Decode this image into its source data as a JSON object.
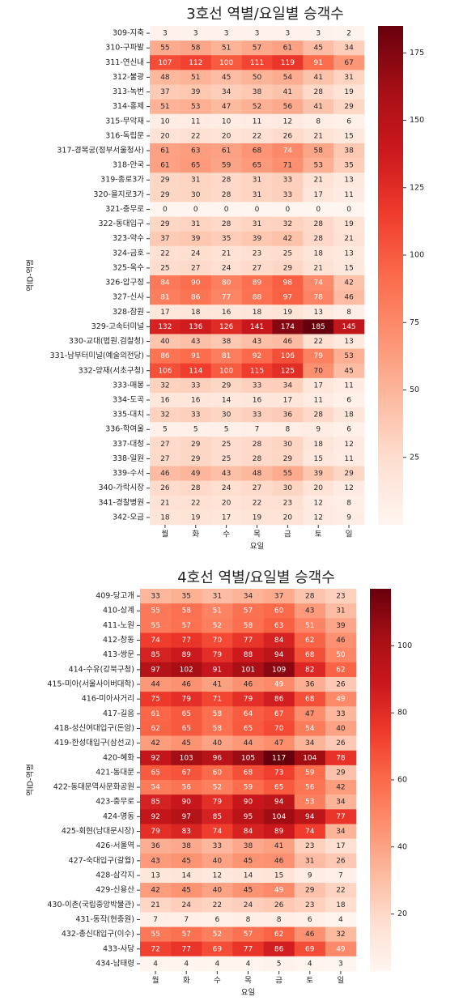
{
  "chart_data": [
    {
      "type": "heatmap",
      "title": "3호선 역별/요일별 승객수",
      "x_label": "요일",
      "y_label": "역ID-역명",
      "cmap": "Reds",
      "x_categories": [
        "월",
        "화",
        "수",
        "목",
        "금",
        "토",
        "일"
      ],
      "y_categories": [
        "309-지축",
        "310-구파발",
        "311-연신내",
        "312-불광",
        "313-녹번",
        "314-홍제",
        "315-무악재",
        "316-독립문",
        "317-경복궁(정부서울청사)",
        "318-안국",
        "319-종로3가",
        "320-을지로3가",
        "321-충무로",
        "322-동대입구",
        "323-약수",
        "324-금호",
        "325-옥수",
        "326-압구정",
        "327-신사",
        "328-잠원",
        "329-고속터미널",
        "330-교대(법원.검찰청)",
        "331-남부터미널(예술의전당)",
        "332-양재(서초구청)",
        "333-매봉",
        "334-도곡",
        "335-대치",
        "336-학여울",
        "337-대청",
        "338-일원",
        "339-수서",
        "340-가락시장",
        "341-경찰병원",
        "342-오금"
      ],
      "values": [
        [
          3,
          3,
          3,
          3,
          3,
          3,
          2
        ],
        [
          55,
          58,
          51,
          57,
          61,
          45,
          34
        ],
        [
          107,
          112,
          100,
          111,
          119,
          91,
          67
        ],
        [
          48,
          51,
          45,
          50,
          54,
          41,
          31
        ],
        [
          37,
          39,
          34,
          38,
          41,
          28,
          19
        ],
        [
          51,
          53,
          47,
          52,
          56,
          41,
          29
        ],
        [
          10,
          11,
          10,
          11,
          12,
          8,
          6
        ],
        [
          20,
          22,
          20,
          22,
          26,
          21,
          15
        ],
        [
          61,
          63,
          61,
          68,
          74,
          58,
          38
        ],
        [
          61,
          65,
          59,
          65,
          71,
          53,
          35
        ],
        [
          29,
          31,
          28,
          31,
          33,
          21,
          13
        ],
        [
          29,
          30,
          28,
          31,
          33,
          17,
          11
        ],
        [
          0,
          0,
          0,
          0,
          0,
          0,
          0
        ],
        [
          29,
          31,
          28,
          31,
          32,
          28,
          19
        ],
        [
          37,
          39,
          35,
          39,
          42,
          28,
          21
        ],
        [
          22,
          24,
          21,
          23,
          25,
          18,
          13
        ],
        [
          25,
          27,
          24,
          27,
          29,
          21,
          15
        ],
        [
          84,
          90,
          80,
          89,
          98,
          74,
          42
        ],
        [
          81,
          86,
          77,
          88,
          97,
          78,
          46
        ],
        [
          17,
          18,
          16,
          18,
          19,
          13,
          8
        ],
        [
          132,
          136,
          126,
          141,
          174,
          185,
          145
        ],
        [
          40,
          43,
          38,
          43,
          46,
          22,
          13
        ],
        [
          86,
          91,
          81,
          92,
          106,
          79,
          53
        ],
        [
          106,
          114,
          100,
          115,
          125,
          70,
          45
        ],
        [
          32,
          33,
          29,
          33,
          34,
          17,
          11
        ],
        [
          16,
          16,
          14,
          16,
          17,
          11,
          6
        ],
        [
          32,
          33,
          30,
          33,
          36,
          28,
          18
        ],
        [
          5,
          5,
          5,
          7,
          8,
          9,
          6
        ],
        [
          27,
          29,
          25,
          28,
          30,
          18,
          12
        ],
        [
          27,
          29,
          25,
          28,
          29,
          15,
          11
        ],
        [
          46,
          49,
          43,
          48,
          55,
          39,
          29
        ],
        [
          26,
          28,
          24,
          27,
          30,
          20,
          12
        ],
        [
          21,
          22,
          20,
          22,
          23,
          12,
          8
        ],
        [
          18,
          19,
          17,
          19,
          20,
          12,
          9
        ]
      ],
      "clim": [
        0,
        185
      ],
      "cticks": [
        25,
        50,
        75,
        100,
        125,
        150,
        175
      ]
    },
    {
      "type": "heatmap",
      "title": "4호선 역별/요일별 승객수",
      "x_label": "요일",
      "y_label": "역ID-역명",
      "cmap": "Reds",
      "x_categories": [
        "월",
        "화",
        "수",
        "목",
        "금",
        "토",
        "일"
      ],
      "y_categories": [
        "409-당고개",
        "410-상계",
        "411-노원",
        "412-창동",
        "413-쌍문",
        "414-수유(강북구청)",
        "415-미아(서울사이버대학)",
        "416-미아사거리",
        "417-길음",
        "418-성신여대입구(돈암)",
        "419-한성대입구(삼선교)",
        "420-혜화",
        "421-동대문",
        "422-동대문역사문화공원",
        "423-충무로",
        "424-명동",
        "425-회현(남대문시장)",
        "426-서울역",
        "427-숙대입구(갈월)",
        "428-삼각지",
        "429-신용산",
        "430-이촌(국립중앙박물관)",
        "431-동작(현충원)",
        "432-총신대입구(이수)",
        "433-사당",
        "434-남태령"
      ],
      "values": [
        [
          33,
          35,
          31,
          34,
          37,
          28,
          23
        ],
        [
          55,
          58,
          51,
          57,
          60,
          43,
          31
        ],
        [
          55,
          57,
          52,
          58,
          63,
          51,
          39
        ],
        [
          74,
          77,
          70,
          77,
          84,
          62,
          46
        ],
        [
          85,
          89,
          79,
          88,
          94,
          68,
          50
        ],
        [
          97,
          102,
          91,
          101,
          109,
          82,
          62
        ],
        [
          44,
          46,
          41,
          46,
          49,
          36,
          26
        ],
        [
          75,
          79,
          71,
          79,
          86,
          68,
          49
        ],
        [
          61,
          65,
          58,
          64,
          67,
          47,
          33
        ],
        [
          62,
          65,
          58,
          65,
          70,
          54,
          40
        ],
        [
          42,
          45,
          40,
          44,
          47,
          34,
          26
        ],
        [
          92,
          103,
          96,
          105,
          117,
          104,
          78
        ],
        [
          65,
          67,
          60,
          68,
          73,
          59,
          29
        ],
        [
          54,
          56,
          52,
          59,
          65,
          56,
          42
        ],
        [
          85,
          90,
          79,
          90,
          94,
          53,
          34
        ],
        [
          92,
          97,
          85,
          95,
          104,
          94,
          77
        ],
        [
          79,
          83,
          74,
          84,
          89,
          74,
          34
        ],
        [
          36,
          38,
          33,
          38,
          41,
          23,
          17
        ],
        [
          43,
          45,
          40,
          45,
          46,
          31,
          26
        ],
        [
          13,
          14,
          12,
          14,
          15,
          9,
          7
        ],
        [
          42,
          45,
          40,
          45,
          49,
          29,
          22
        ],
        [
          21,
          24,
          22,
          24,
          26,
          23,
          18
        ],
        [
          7,
          7,
          6,
          8,
          8,
          6,
          4
        ],
        [
          55,
          57,
          52,
          57,
          62,
          46,
          32
        ],
        [
          72,
          77,
          69,
          77,
          86,
          69,
          49
        ],
        [
          4,
          4,
          4,
          4,
          5,
          4,
          3
        ]
      ],
      "clim": [
        3,
        117
      ],
      "cticks": [
        20,
        40,
        60,
        80,
        100
      ]
    }
  ]
}
